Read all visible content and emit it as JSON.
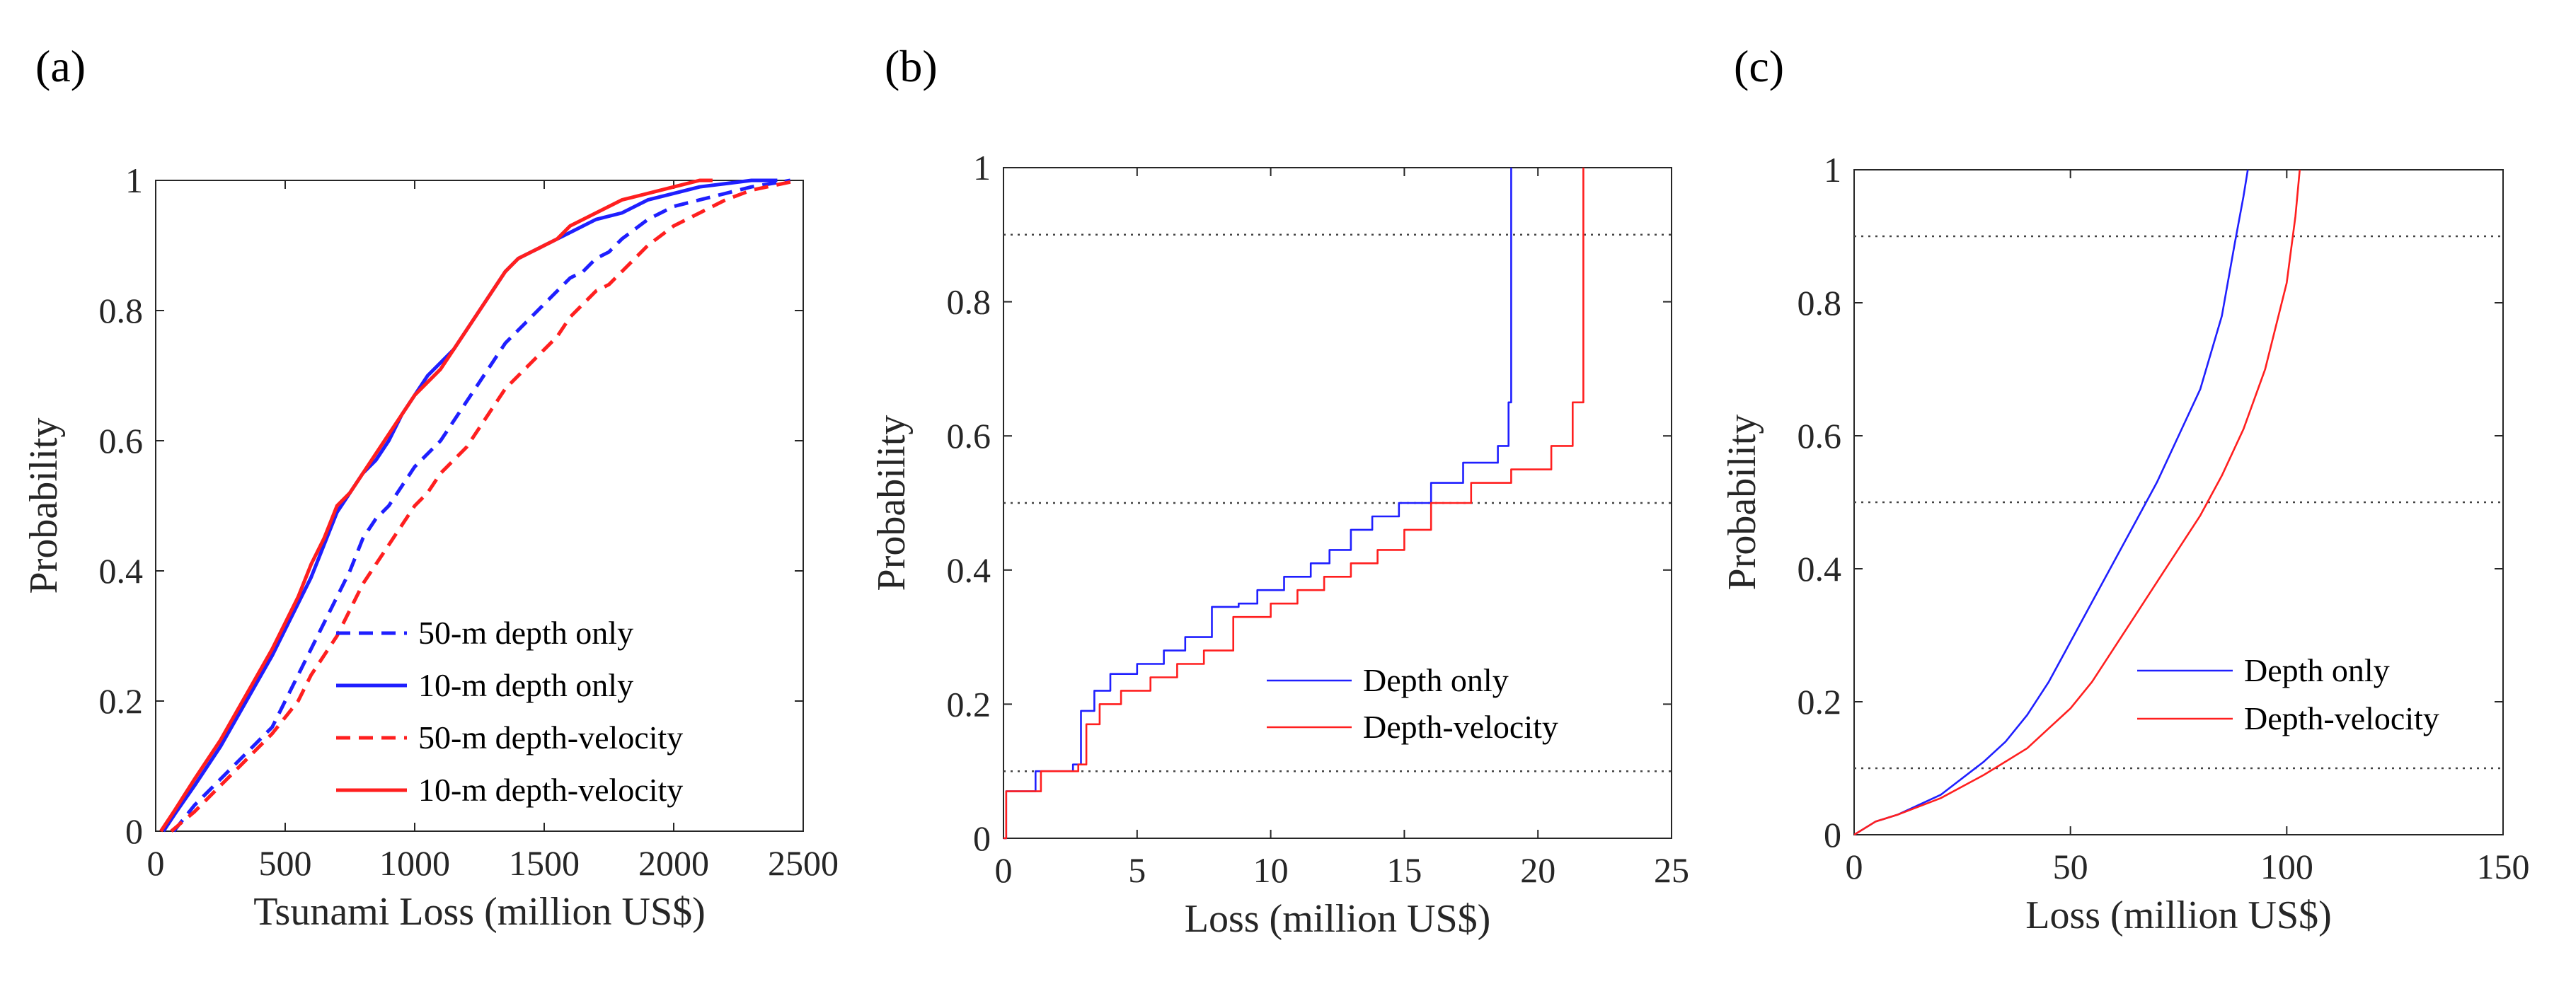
{
  "chart_data": [
    {
      "panel": "(a)",
      "type": "line",
      "xlabel": "Tsunami Loss (million US$)",
      "ylabel": "Probability",
      "xlim": [
        0,
        2500
      ],
      "ylim": [
        0,
        1
      ],
      "xticks": [
        0,
        500,
        1000,
        1500,
        2000,
        2500
      ],
      "yticks": [
        0,
        0.2,
        0.4,
        0.6,
        0.8,
        1
      ],
      "xtick_labels": [
        "0",
        "500",
        "1000",
        "1500",
        "2000",
        "2500"
      ],
      "ytick_labels": [
        "0",
        "0.2",
        "0.4",
        "0.6",
        "0.8",
        "1"
      ],
      "legend_position": "bottom-right",
      "series": [
        {
          "name": "50-m depth only",
          "color": "#1f1fff",
          "dash": "dashed",
          "step": false,
          "x": [
            70,
            150,
            250,
            350,
            450,
            500,
            550,
            600,
            650,
            700,
            750,
            800,
            850,
            900,
            950,
            1000,
            1050,
            1100,
            1150,
            1200,
            1250,
            1300,
            1350,
            1400,
            1450,
            1500,
            1550,
            1600,
            1650,
            1700,
            1750,
            1800,
            1900,
            2000,
            2100,
            2200,
            2300,
            2450
          ],
          "y": [
            0,
            0.04,
            0.08,
            0.12,
            0.16,
            0.2,
            0.24,
            0.28,
            0.32,
            0.36,
            0.4,
            0.45,
            0.48,
            0.5,
            0.53,
            0.56,
            0.58,
            0.6,
            0.63,
            0.66,
            0.69,
            0.72,
            0.75,
            0.77,
            0.79,
            0.81,
            0.83,
            0.85,
            0.86,
            0.88,
            0.89,
            0.91,
            0.94,
            0.96,
            0.97,
            0.98,
            0.99,
            1.0
          ]
        },
        {
          "name": "10-m depth only",
          "color": "#1f1fff",
          "dash": "solid",
          "step": false,
          "x": [
            30,
            80,
            150,
            250,
            350,
            450,
            550,
            600,
            650,
            700,
            750,
            800,
            850,
            900,
            950,
            1000,
            1050,
            1100,
            1150,
            1200,
            1250,
            1300,
            1350,
            1400,
            1450,
            1500,
            1550,
            1600,
            1700,
            1800,
            1900,
            2000,
            2100,
            2200,
            2300,
            2400
          ],
          "y": [
            0,
            0.03,
            0.07,
            0.13,
            0.2,
            0.27,
            0.35,
            0.39,
            0.44,
            0.49,
            0.52,
            0.55,
            0.57,
            0.6,
            0.64,
            0.67,
            0.7,
            0.72,
            0.74,
            0.77,
            0.8,
            0.83,
            0.86,
            0.88,
            0.89,
            0.9,
            0.91,
            0.92,
            0.94,
            0.95,
            0.97,
            0.98,
            0.99,
            0.995,
            1.0,
            1.0
          ]
        },
        {
          "name": "50-m depth-velocity",
          "color": "#ff1f1f",
          "dash": "dashed",
          "step": false,
          "x": [
            60,
            150,
            250,
            350,
            450,
            550,
            600,
            650,
            700,
            750,
            800,
            850,
            900,
            950,
            1000,
            1050,
            1100,
            1150,
            1200,
            1250,
            1300,
            1350,
            1400,
            1450,
            1500,
            1550,
            1600,
            1650,
            1700,
            1750,
            1800,
            1850,
            1900,
            2000,
            2100,
            2200,
            2300,
            2480
          ],
          "y": [
            0,
            0.03,
            0.07,
            0.11,
            0.15,
            0.2,
            0.24,
            0.27,
            0.3,
            0.34,
            0.38,
            0.41,
            0.44,
            0.47,
            0.5,
            0.52,
            0.55,
            0.57,
            0.59,
            0.62,
            0.65,
            0.68,
            0.7,
            0.72,
            0.74,
            0.76,
            0.79,
            0.81,
            0.83,
            0.84,
            0.86,
            0.88,
            0.9,
            0.93,
            0.95,
            0.97,
            0.985,
            1.0
          ]
        },
        {
          "name": "10-m depth-velocity",
          "color": "#ff1f1f",
          "dash": "solid",
          "step": false,
          "x": [
            20,
            70,
            150,
            250,
            350,
            450,
            550,
            600,
            650,
            700,
            750,
            800,
            850,
            900,
            950,
            1000,
            1050,
            1100,
            1150,
            1200,
            1250,
            1300,
            1350,
            1400,
            1450,
            1500,
            1550,
            1600,
            1700,
            1800,
            1900,
            2000,
            2100,
            2150
          ],
          "y": [
            0,
            0.03,
            0.08,
            0.14,
            0.21,
            0.28,
            0.36,
            0.41,
            0.45,
            0.5,
            0.52,
            0.55,
            0.58,
            0.61,
            0.64,
            0.67,
            0.69,
            0.71,
            0.74,
            0.77,
            0.8,
            0.83,
            0.86,
            0.88,
            0.89,
            0.9,
            0.91,
            0.93,
            0.95,
            0.97,
            0.98,
            0.99,
            1.0,
            1.0
          ]
        }
      ],
      "hlines": []
    },
    {
      "panel": "(b)",
      "type": "line",
      "xlabel": "Loss (million US$)",
      "ylabel": "Probability",
      "xlim": [
        0,
        25
      ],
      "ylim": [
        0,
        1
      ],
      "xticks": [
        0,
        5,
        10,
        15,
        20,
        25
      ],
      "yticks": [
        0,
        0.2,
        0.4,
        0.6,
        0.8,
        1
      ],
      "xtick_labels": [
        "0",
        "5",
        "10",
        "15",
        "20",
        "25"
      ],
      "ytick_labels": [
        "0",
        "0.2",
        "0.4",
        "0.6",
        "0.8",
        "1"
      ],
      "legend_position": "center-right",
      "hlines": [
        0.1,
        0.5,
        0.9
      ],
      "series": [
        {
          "name": "Depth only",
          "color": "#1f1fff",
          "dash": "solid",
          "step": true,
          "x": [
            0,
            0.1,
            1.2,
            2.6,
            2.9,
            3.4,
            4.0,
            5.0,
            6.0,
            6.8,
            7.8,
            8.8,
            9.5,
            10.5,
            11.5,
            12.2,
            13.0,
            13.8,
            14.8,
            16.0,
            17.2,
            18.5,
            18.9,
            19.0
          ],
          "y": [
            0,
            0.07,
            0.1,
            0.11,
            0.19,
            0.22,
            0.245,
            0.26,
            0.28,
            0.3,
            0.345,
            0.35,
            0.37,
            0.39,
            0.41,
            0.43,
            0.46,
            0.48,
            0.5,
            0.53,
            0.56,
            0.585,
            0.65,
            1.0
          ]
        },
        {
          "name": "Depth-velocity",
          "color": "#ff1f1f",
          "dash": "solid",
          "step": true,
          "x": [
            0,
            0.1,
            1.4,
            2.8,
            3.1,
            3.6,
            4.4,
            5.5,
            6.5,
            7.5,
            8.6,
            10.0,
            11.0,
            12.0,
            13.0,
            14.0,
            15.0,
            16.0,
            17.5,
            19.0,
            20.5,
            21.3,
            21.6,
            21.7
          ],
          "y": [
            0,
            0.07,
            0.1,
            0.11,
            0.17,
            0.2,
            0.22,
            0.24,
            0.26,
            0.28,
            0.33,
            0.35,
            0.37,
            0.39,
            0.41,
            0.43,
            0.46,
            0.5,
            0.53,
            0.55,
            0.585,
            0.65,
            0.65,
            1.0
          ]
        }
      ]
    },
    {
      "panel": "(c)",
      "type": "line",
      "xlabel": "Loss (million US$)",
      "ylabel": "Probability",
      "xlim": [
        0,
        150
      ],
      "ylim": [
        0,
        1
      ],
      "xticks": [
        0,
        50,
        100,
        150
      ],
      "yticks": [
        0,
        0.2,
        0.4,
        0.6,
        0.8,
        1
      ],
      "xtick_labels": [
        "0",
        "50",
        "100",
        "150"
      ],
      "ytick_labels": [
        "0",
        "0.2",
        "0.4",
        "0.6",
        "0.8",
        "1"
      ],
      "legend_position": "center-right",
      "hlines": [
        0.1,
        0.5,
        0.9
      ],
      "series": [
        {
          "name": "Depth only",
          "color": "#1f1fff",
          "dash": "solid",
          "step": false,
          "x": [
            0,
            5,
            10,
            20,
            30,
            35,
            40,
            45,
            50,
            55,
            60,
            65,
            70,
            75,
            80,
            85,
            88,
            90,
            91
          ],
          "y": [
            0,
            0.02,
            0.03,
            0.06,
            0.11,
            0.14,
            0.18,
            0.23,
            0.29,
            0.35,
            0.41,
            0.47,
            0.53,
            0.6,
            0.67,
            0.78,
            0.89,
            0.96,
            1.0
          ]
        },
        {
          "name": "Depth-velocity",
          "color": "#ff1f1f",
          "dash": "solid",
          "step": false,
          "x": [
            0,
            5,
            10,
            20,
            30,
            35,
            40,
            45,
            50,
            55,
            60,
            65,
            70,
            75,
            80,
            85,
            90,
            95,
            100,
            102,
            103
          ],
          "y": [
            0,
            0.02,
            0.03,
            0.055,
            0.09,
            0.11,
            0.13,
            0.16,
            0.19,
            0.23,
            0.28,
            0.33,
            0.38,
            0.43,
            0.48,
            0.54,
            0.61,
            0.7,
            0.83,
            0.93,
            1.0
          ]
        }
      ]
    }
  ]
}
